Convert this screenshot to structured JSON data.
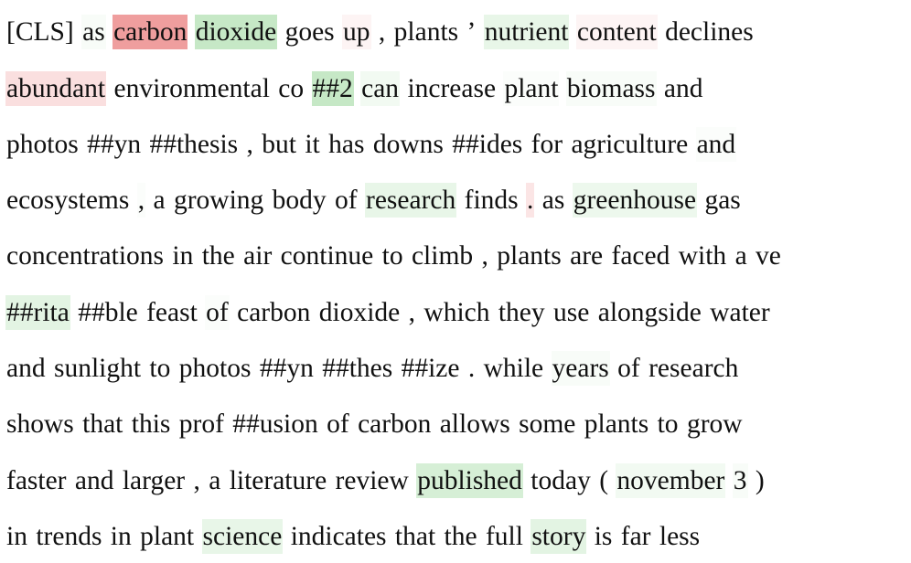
{
  "heatmap": {
    "positive_color": "#1aa51a",
    "negative_color": "#dc2828",
    "lines": [
      [
        [
          "[CLS]",
          0
        ],
        [
          "as",
          0.03
        ],
        [
          "carbon",
          -0.45
        ],
        [
          "dioxide",
          0.25
        ],
        [
          "goes",
          0
        ],
        [
          "up",
          -0.05
        ],
        [
          ",",
          0
        ],
        [
          "plants",
          0
        ],
        [
          "’",
          0
        ],
        [
          "nutrient",
          0.1
        ],
        [
          "content",
          -0.05
        ],
        [
          "declines",
          0
        ]
      ],
      [
        [
          "abundant",
          -0.15
        ],
        [
          "environmental",
          0
        ],
        [
          "co",
          0
        ],
        [
          "##2",
          0.25
        ],
        [
          "can",
          0.06
        ],
        [
          "increase",
          0
        ],
        [
          "plant",
          0.02
        ],
        [
          "biomass",
          0.03
        ],
        [
          "and",
          0
        ]
      ],
      [
        [
          "photos",
          0
        ],
        [
          "##yn",
          0
        ],
        [
          "##thesis",
          0
        ],
        [
          ",",
          0
        ],
        [
          "but",
          0
        ],
        [
          "it",
          0
        ],
        [
          "has",
          0
        ],
        [
          "downs",
          0
        ],
        [
          "##ides",
          0
        ],
        [
          "for",
          0
        ],
        [
          "agriculture",
          0
        ],
        [
          "and",
          0.02
        ]
      ],
      [
        [
          "ecosystems",
          0
        ],
        [
          ",",
          0.02
        ],
        [
          "a",
          0
        ],
        [
          "growing",
          0
        ],
        [
          "body",
          0
        ],
        [
          "of",
          0
        ],
        [
          "research",
          0.1
        ],
        [
          "finds",
          0
        ],
        [
          ".",
          -0.12
        ],
        [
          "as",
          0
        ],
        [
          "greenhouse",
          0.08
        ],
        [
          "gas",
          0
        ]
      ],
      [
        [
          "concentrations",
          0
        ],
        [
          "in",
          0
        ],
        [
          "the",
          0
        ],
        [
          "air",
          0
        ],
        [
          "continue",
          0
        ],
        [
          "to",
          0
        ],
        [
          "climb",
          0
        ],
        [
          ",",
          0
        ],
        [
          "plants",
          0
        ],
        [
          "are",
          0
        ],
        [
          "faced",
          0
        ],
        [
          "with",
          0
        ],
        [
          "a",
          0
        ],
        [
          "ve",
          0
        ]
      ],
      [
        [
          "##rita",
          0.12
        ],
        [
          "##ble",
          0
        ],
        [
          "feast",
          0
        ],
        [
          "of",
          0.02
        ],
        [
          "carbon",
          0
        ],
        [
          "dioxide",
          0
        ],
        [
          ",",
          0
        ],
        [
          "which",
          0
        ],
        [
          "they",
          0
        ],
        [
          "use",
          0
        ],
        [
          "alongside",
          0
        ],
        [
          "water",
          0
        ]
      ],
      [
        [
          "and",
          0
        ],
        [
          "sunlight",
          0
        ],
        [
          "to",
          0
        ],
        [
          "photos",
          0
        ],
        [
          "##yn",
          0
        ],
        [
          "##thes",
          0
        ],
        [
          "##ize",
          0
        ],
        [
          ".",
          0
        ],
        [
          "while",
          0
        ],
        [
          "years",
          0.03
        ],
        [
          "of",
          0
        ],
        [
          "research",
          0
        ]
      ],
      [
        [
          "shows",
          0
        ],
        [
          "that",
          0
        ],
        [
          "this",
          0
        ],
        [
          "prof",
          0
        ],
        [
          "##usion",
          0
        ],
        [
          "of",
          0
        ],
        [
          "carbon",
          0
        ],
        [
          "allows",
          0
        ],
        [
          "some",
          0
        ],
        [
          "plants",
          0
        ],
        [
          "to",
          0
        ],
        [
          "grow",
          0
        ]
      ],
      [
        [
          "faster",
          0
        ],
        [
          "and",
          0
        ],
        [
          "larger",
          0
        ],
        [
          ",",
          0
        ],
        [
          "a",
          0
        ],
        [
          "literature",
          0
        ],
        [
          "review",
          0
        ],
        [
          "published",
          0.18
        ],
        [
          "today",
          0
        ],
        [
          "(",
          0
        ],
        [
          "november",
          0.06
        ],
        [
          "3",
          0.03
        ],
        [
          ")",
          0
        ]
      ],
      [
        [
          "in",
          0
        ],
        [
          "trends",
          0
        ],
        [
          "in",
          0
        ],
        [
          "plant",
          0
        ],
        [
          "science",
          0.1
        ],
        [
          "indicates",
          0
        ],
        [
          "that",
          0
        ],
        [
          "the",
          0
        ],
        [
          "full",
          0
        ],
        [
          "story",
          0.12
        ],
        [
          "is",
          0
        ],
        [
          "far",
          0
        ],
        [
          "less",
          0
        ]
      ]
    ]
  }
}
